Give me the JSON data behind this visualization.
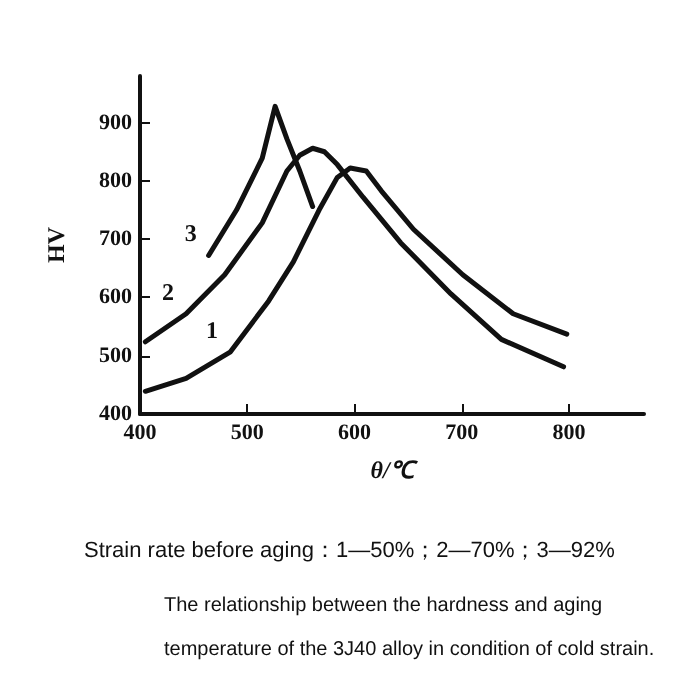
{
  "chart_data": {
    "type": "line",
    "xlabel": "θ/℃",
    "ylabel": "HV",
    "xlim": [
      400,
      870
    ],
    "xticks": [
      400,
      500,
      600,
      700,
      800
    ],
    "ylim": [
      400,
      980
    ],
    "yticks": [
      400,
      500,
      600,
      700,
      800,
      900
    ],
    "grid": false,
    "marker": "none",
    "line_style": "solid",
    "series": [
      {
        "color": "#111111",
        "x": [
          405,
          443,
          484,
          520,
          543,
          567,
          584,
          596,
          611,
          625,
          655,
          701,
          748,
          798
        ],
        "values": [
          439,
          461,
          506,
          594,
          661,
          750,
          806,
          822,
          817,
          783,
          717,
          639,
          572,
          537
        ]
      },
      {
        "color": "#111111",
        "x": [
          405,
          443,
          479,
          514,
          537,
          549,
          561,
          572,
          584,
          608,
          643,
          690,
          737,
          795
        ],
        "values": [
          524,
          572,
          639,
          728,
          817,
          844,
          856,
          850,
          828,
          772,
          694,
          606,
          528,
          481
        ]
      },
      {
        "color": "#111111",
        "x": [
          464,
          490,
          514,
          526,
          537,
          549,
          561
        ],
        "values": [
          672,
          750,
          839,
          928,
          872,
          817,
          756
        ]
      }
    ],
    "annotations": [
      "1",
      "2",
      "3",
      "Strain rate before aging：1—50%；2—70%；3—92%",
      "The relationship between the hardness and aging",
      "temperature of the 3J40 alloy in condition of cold strain."
    ]
  }
}
